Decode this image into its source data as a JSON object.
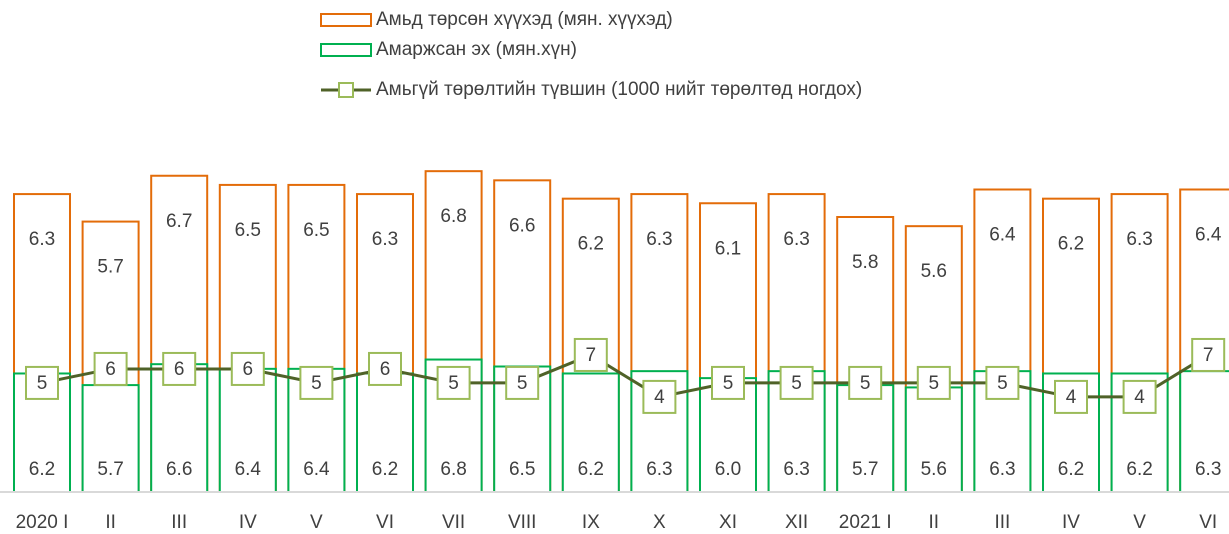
{
  "chart_data": {
    "type": "bar",
    "categories": [
      "2020 I",
      "II",
      "III",
      "IV",
      "V",
      "VI",
      "VII",
      "VIII",
      "IX",
      "X",
      "XI",
      "XII",
      "2021 I",
      "II",
      "III",
      "IV",
      "V",
      "VI"
    ],
    "series": [
      {
        "name": "Амьд төрсөн хүүхэд (мян. хүүхэд)",
        "type": "bar",
        "axis": "y",
        "color": "#e36c09",
        "values": [
          6.3,
          5.7,
          6.7,
          6.5,
          6.5,
          6.3,
          6.8,
          6.6,
          6.2,
          6.3,
          6.1,
          6.3,
          5.8,
          5.6,
          6.4,
          6.2,
          6.3,
          6.4
        ]
      },
      {
        "name": "Амаржсан эх (мян.хүн)",
        "type": "bar",
        "axis": "y2",
        "color": "#00b050",
        "values": [
          6.2,
          5.7,
          6.6,
          6.4,
          6.4,
          6.2,
          6.8,
          6.5,
          6.2,
          6.3,
          6.0,
          6.3,
          5.7,
          5.6,
          6.3,
          6.2,
          6.2,
          6.3
        ],
        "value_labels": [
          "6.2",
          "5.7",
          "6.6",
          "6.4",
          "6.4",
          "6.2",
          "6.8",
          "6.5",
          "6.2",
          "6.3",
          "6.0",
          "6.3",
          "5.7",
          "5.6",
          "6.3",
          "6.2",
          "6.2",
          "6.3"
        ]
      },
      {
        "name": "Амьгүй төрөлтийн түвшин (1000 нийт төрөлтөд ногдох)",
        "type": "line",
        "axis": "y3",
        "color": "#4f6228",
        "marker_color": "#9bbb59",
        "values": [
          5,
          6,
          6,
          6,
          5,
          6,
          5,
          5,
          7,
          4,
          5,
          5,
          5,
          5,
          5,
          4,
          4,
          7
        ]
      }
    ],
    "ylim": [
      -0.2,
      7.0
    ],
    "y2lim": [
      1.1,
      15.3
    ],
    "y3lim": [
      -2.8,
      20.8
    ],
    "legend": "top"
  }
}
